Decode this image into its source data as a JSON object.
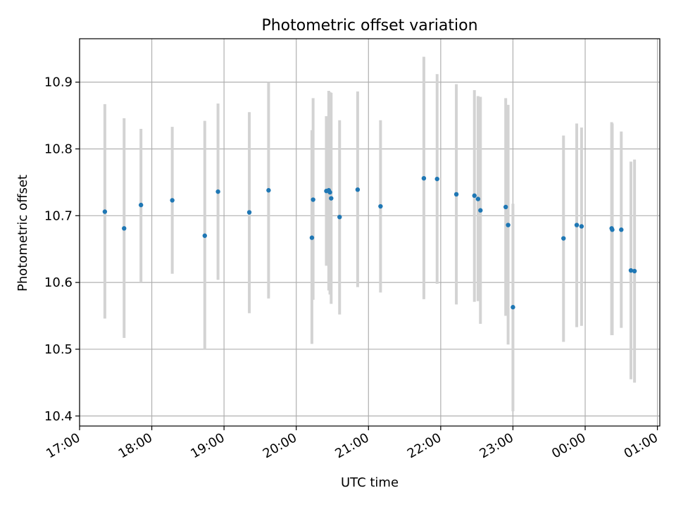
{
  "chart_data": {
    "type": "scatter",
    "title": "Photometric offset variation",
    "xlabel": "UTC time",
    "ylabel": "Photometric offset",
    "xlim": [
      "2023-01-01T17:00:00Z",
      "2023-01-02T01:02:00Z"
    ],
    "ylim": [
      10.385,
      10.965
    ],
    "x_tick_labels": [
      "17:00",
      "18:00",
      "19:00",
      "20:00",
      "21:00",
      "22:00",
      "23:00",
      "00:00",
      "01:00"
    ],
    "y_ticks": [
      10.4,
      10.5,
      10.6,
      10.7,
      10.8,
      10.9
    ],
    "grid": true,
    "marker_color": "#1f77b4",
    "errorbar_color": "#d3d3d3",
    "points": [
      {
        "t": "2023-01-01T17:21:00Z",
        "y": 10.706,
        "ylow": 10.546,
        "yhigh": 10.867
      },
      {
        "t": "2023-01-01T17:37:00Z",
        "y": 10.681,
        "ylow": 10.517,
        "yhigh": 10.846
      },
      {
        "t": "2023-01-01T17:51:00Z",
        "y": 10.716,
        "ylow": 10.6,
        "yhigh": 10.83
      },
      {
        "t": "2023-01-01T18:17:00Z",
        "y": 10.723,
        "ylow": 10.613,
        "yhigh": 10.833
      },
      {
        "t": "2023-01-01T18:44:00Z",
        "y": 10.67,
        "ylow": 10.5,
        "yhigh": 10.842
      },
      {
        "t": "2023-01-01T18:55:00Z",
        "y": 10.736,
        "ylow": 10.604,
        "yhigh": 10.868
      },
      {
        "t": "2023-01-01T19:21:00Z",
        "y": 10.705,
        "ylow": 10.554,
        "yhigh": 10.855
      },
      {
        "t": "2023-01-01T19:37:00Z",
        "y": 10.738,
        "ylow": 10.576,
        "yhigh": 10.9
      },
      {
        "t": "2023-01-01T20:13:00Z",
        "y": 10.667,
        "ylow": 10.508,
        "yhigh": 10.828
      },
      {
        "t": "2023-01-01T20:14:00Z",
        "y": 10.724,
        "ylow": 10.574,
        "yhigh": 10.876
      },
      {
        "t": "2023-01-01T20:25:00Z",
        "y": 10.737,
        "ylow": 10.625,
        "yhigh": 10.849
      },
      {
        "t": "2023-01-01T20:27:00Z",
        "y": 10.738,
        "ylow": 10.588,
        "yhigh": 10.887
      },
      {
        "t": "2023-01-01T20:28:00Z",
        "y": 10.735,
        "ylow": 10.582,
        "yhigh": 10.885
      },
      {
        "t": "2023-01-01T20:29:00Z",
        "y": 10.726,
        "ylow": 10.568,
        "yhigh": 10.884
      },
      {
        "t": "2023-01-01T20:36:00Z",
        "y": 10.698,
        "ylow": 10.552,
        "yhigh": 10.843
      },
      {
        "t": "2023-01-01T20:51:00Z",
        "y": 10.739,
        "ylow": 10.593,
        "yhigh": 10.886
      },
      {
        "t": "2023-01-01T21:10:00Z",
        "y": 10.714,
        "ylow": 10.585,
        "yhigh": 10.843
      },
      {
        "t": "2023-01-01T21:46:00Z",
        "y": 10.756,
        "ylow": 10.575,
        "yhigh": 10.938
      },
      {
        "t": "2023-01-01T21:57:00Z",
        "y": 10.755,
        "ylow": 10.598,
        "yhigh": 10.912
      },
      {
        "t": "2023-01-01T22:13:00Z",
        "y": 10.732,
        "ylow": 10.567,
        "yhigh": 10.897
      },
      {
        "t": "2023-01-01T22:28:00Z",
        "y": 10.73,
        "ylow": 10.571,
        "yhigh": 10.888
      },
      {
        "t": "2023-01-01T22:31:00Z",
        "y": 10.725,
        "ylow": 10.572,
        "yhigh": 10.879
      },
      {
        "t": "2023-01-01T22:33:00Z",
        "y": 10.708,
        "ylow": 10.538,
        "yhigh": 10.878
      },
      {
        "t": "2023-01-01T22:54:00Z",
        "y": 10.713,
        "ylow": 10.55,
        "yhigh": 10.876
      },
      {
        "t": "2023-01-01T22:56:00Z",
        "y": 10.686,
        "ylow": 10.507,
        "yhigh": 10.866
      },
      {
        "t": "2023-01-01T23:00:00Z",
        "y": 10.563,
        "ylow": 10.407,
        "yhigh": 10.718
      },
      {
        "t": "2023-01-01T23:42:00Z",
        "y": 10.666,
        "ylow": 10.511,
        "yhigh": 10.82
      },
      {
        "t": "2023-01-01T23:53:00Z",
        "y": 10.686,
        "ylow": 10.533,
        "yhigh": 10.838
      },
      {
        "t": "2023-01-01T23:57:00Z",
        "y": 10.684,
        "ylow": 10.535,
        "yhigh": 10.832
      },
      {
        "t": "2023-01-02T00:22:00Z",
        "y": 10.681,
        "ylow": 10.521,
        "yhigh": 10.84
      },
      {
        "t": "2023-01-02T00:22:30Z",
        "y": 10.679,
        "ylow": 10.521,
        "yhigh": 10.838
      },
      {
        "t": "2023-01-02T00:30:00Z",
        "y": 10.679,
        "ylow": 10.532,
        "yhigh": 10.826
      },
      {
        "t": "2023-01-02T00:38:00Z",
        "y": 10.618,
        "ylow": 10.455,
        "yhigh": 10.781
      },
      {
        "t": "2023-01-02T00:41:00Z",
        "y": 10.617,
        "ylow": 10.45,
        "yhigh": 10.784
      }
    ]
  }
}
